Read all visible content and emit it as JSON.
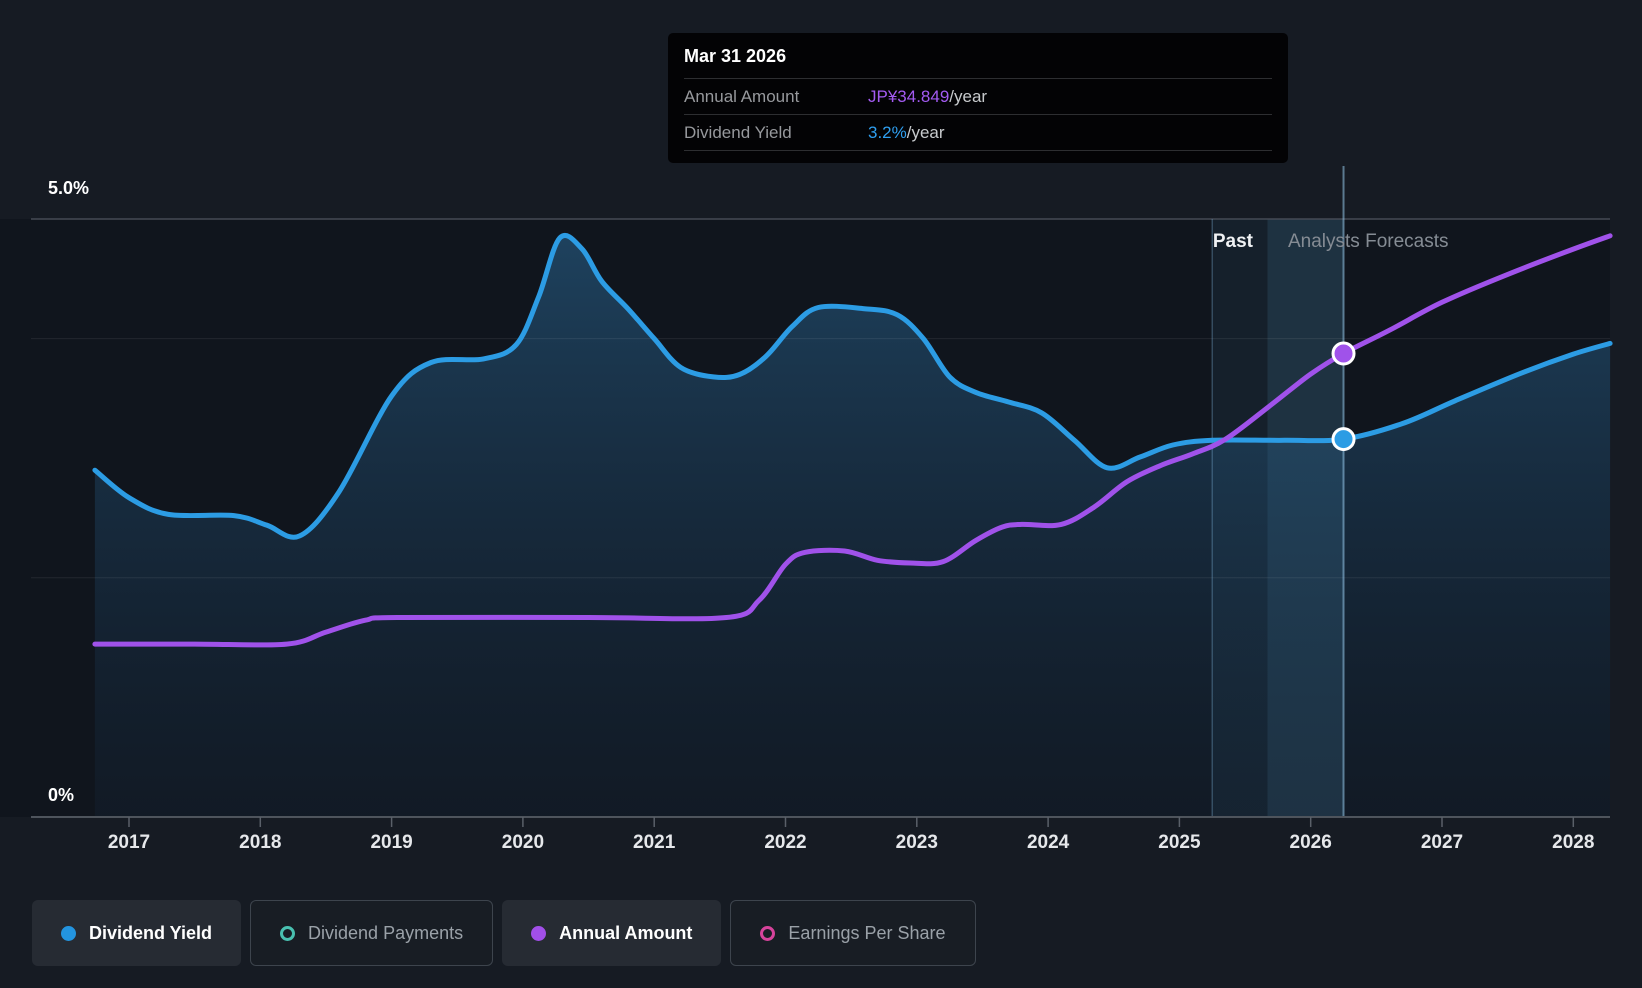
{
  "chart_data": {
    "type": "area",
    "title": "Dividend history and forecast chart",
    "x_axis": {
      "ticks": [
        2017,
        2018,
        2019,
        2020,
        2021,
        2022,
        2023,
        2024,
        2025,
        2026,
        2027,
        2028
      ],
      "range": [
        2016.74,
        2028.28
      ]
    },
    "y_axis": {
      "top_label": "5.0%",
      "bottom_label": "0%",
      "min_pct": 0,
      "max_pct": 5,
      "gridline_pcts": [
        5,
        4,
        2,
        0
      ],
      "grid": true
    },
    "series": [
      {
        "name": "Dividend Yield",
        "unit": "%",
        "color": "#2c9ce4",
        "fill": true,
        "points": [
          [
            2016.74,
            2.9
          ],
          [
            2017.0,
            2.67
          ],
          [
            2017.3,
            2.53
          ],
          [
            2017.8,
            2.52
          ],
          [
            2018.05,
            2.44
          ],
          [
            2018.3,
            2.35
          ],
          [
            2018.6,
            2.72
          ],
          [
            2019.0,
            3.52
          ],
          [
            2019.3,
            3.8
          ],
          [
            2019.7,
            3.83
          ],
          [
            2019.95,
            3.95
          ],
          [
            2020.12,
            4.35
          ],
          [
            2020.28,
            4.84
          ],
          [
            2020.45,
            4.75
          ],
          [
            2020.6,
            4.48
          ],
          [
            2020.8,
            4.25
          ],
          [
            2021.0,
            4.0
          ],
          [
            2021.2,
            3.76
          ],
          [
            2021.45,
            3.68
          ],
          [
            2021.65,
            3.7
          ],
          [
            2021.85,
            3.85
          ],
          [
            2022.05,
            4.1
          ],
          [
            2022.25,
            4.26
          ],
          [
            2022.6,
            4.25
          ],
          [
            2022.85,
            4.2
          ],
          [
            2023.05,
            4.0
          ],
          [
            2023.25,
            3.68
          ],
          [
            2023.45,
            3.55
          ],
          [
            2023.7,
            3.47
          ],
          [
            2023.95,
            3.38
          ],
          [
            2024.2,
            3.15
          ],
          [
            2024.45,
            2.92
          ],
          [
            2024.7,
            3.01
          ],
          [
            2024.95,
            3.11
          ],
          [
            2025.25,
            3.15
          ],
          [
            2025.8,
            3.15
          ],
          [
            2026.25,
            3.16
          ],
          [
            2026.7,
            3.29
          ],
          [
            2027.1,
            3.48
          ],
          [
            2027.6,
            3.71
          ],
          [
            2028.0,
            3.87
          ],
          [
            2028.28,
            3.96
          ]
        ]
      },
      {
        "name": "Annual Amount",
        "unit": "JP¥/year",
        "color": "#a052ea",
        "fill": false,
        "points": [
          [
            2016.74,
            13.0
          ],
          [
            2017.5,
            13.0
          ],
          [
            2018.2,
            13.0
          ],
          [
            2018.5,
            13.9
          ],
          [
            2018.8,
            14.8
          ],
          [
            2019.05,
            15.0
          ],
          [
            2020.5,
            15.0
          ],
          [
            2021.55,
            15.0
          ],
          [
            2021.8,
            16.3
          ],
          [
            2022.0,
            19.0
          ],
          [
            2022.15,
            19.9
          ],
          [
            2022.45,
            20.0
          ],
          [
            2022.7,
            19.3
          ],
          [
            2022.95,
            19.1
          ],
          [
            2023.2,
            19.2
          ],
          [
            2023.45,
            20.8
          ],
          [
            2023.65,
            21.8
          ],
          [
            2023.8,
            22.0
          ],
          [
            2024.1,
            22.0
          ],
          [
            2024.35,
            23.3
          ],
          [
            2024.6,
            25.2
          ],
          [
            2024.85,
            26.4
          ],
          [
            2025.1,
            27.3
          ],
          [
            2025.35,
            28.4
          ],
          [
            2025.7,
            31.0
          ],
          [
            2026.0,
            33.3
          ],
          [
            2026.25,
            34.849
          ],
          [
            2026.6,
            36.6
          ],
          [
            2027.0,
            38.7
          ],
          [
            2027.5,
            40.8
          ],
          [
            2028.0,
            42.7
          ],
          [
            2028.28,
            43.7
          ]
        ]
      }
    ],
    "markers": {
      "year": 2026.25,
      "dividend_yield_pct": 3.16,
      "annual_amount_jpy": 34.849
    },
    "regions": {
      "past_label": "Past",
      "forecast_label": "Analysts Forecasts",
      "divider_year": 2025.25,
      "highlight_start": 2025.25,
      "highlight_end": 2026.25
    },
    "legend_position": "bottom"
  },
  "tooltip": {
    "title": "Mar 31 2026",
    "rows": [
      {
        "label": "Annual Amount",
        "value": "JP¥34.849",
        "suffix": "/year",
        "color": "#a35bf2"
      },
      {
        "label": "Dividend Yield",
        "value": "3.2%",
        "suffix": "/year",
        "color": "#2f9ff0"
      }
    ]
  },
  "legend": {
    "items": [
      {
        "label": "Dividend Yield",
        "color": "#2394df",
        "marker": "filled",
        "active": true
      },
      {
        "label": "Dividend Payments",
        "color": "#49c0b0",
        "marker": "ring",
        "active": false
      },
      {
        "label": "Annual Amount",
        "color": "#a14fe8",
        "marker": "filled",
        "active": true
      },
      {
        "label": "Earnings Per Share",
        "color": "#d6439b",
        "marker": "ring",
        "active": false
      }
    ]
  },
  "colors": {
    "page_bg": "#161b23",
    "plot_bg": "#10151d",
    "grid_strong": "#454b55",
    "grid_faint": "rgba(255,255,255,0.08)",
    "axis_line": "#4e545c",
    "tick": "#5a6069",
    "area_top": "rgba(47,120,173,0.45)",
    "area_bottom": "rgba(24,52,80,0.16)",
    "divider_line": "rgba(120,170,205,0.35)",
    "hover_line": "rgba(150,200,235,0.55)",
    "band_left": "rgba(64,128,165,0.10)",
    "band_right": "rgba(82,152,192,0.22)"
  }
}
